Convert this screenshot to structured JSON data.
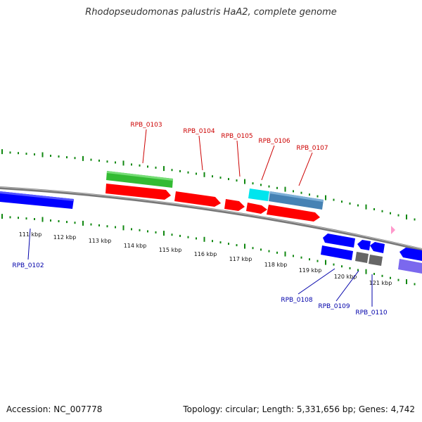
{
  "title": "Rhodopseudomonas palustris HaA2, complete genome",
  "footer": {
    "accession": "Accession: NC_007778",
    "stats": "Topology: circular; Length: 5,331,656 bp; Genes: 4,742"
  },
  "colors": {
    "forward_label": "#cc0000",
    "reverse_label": "#0000aa",
    "cds": "#ff0000",
    "cds_reverse": "#0000ff",
    "rrna_like_green": "#33bb33",
    "cyan_feature": "#00e5ee",
    "steel_feature": "#4682b4",
    "grey_feature": "#666666",
    "purple_feature": "#7b68ee",
    "gc_ticks": "#007700",
    "backbone": "#888888",
    "marker": "#ff99cc"
  },
  "ruler_ticks": [
    "111 kbp",
    "112 kbp",
    "113 kbp",
    "114 kbp",
    "115 kbp",
    "116 kbp",
    "117 kbp",
    "118 kbp",
    "119 kbp",
    "120 kbp",
    "121 kbp"
  ],
  "gene_labels_forward": [
    "RPB_0103",
    "RPB_0104",
    "RPB_0105",
    "RPB_0106",
    "RPB_0107"
  ],
  "gene_labels_reverse": [
    "RPB_0102",
    "RPB_0108",
    "RPB_0109",
    "RPB_0110"
  ]
}
